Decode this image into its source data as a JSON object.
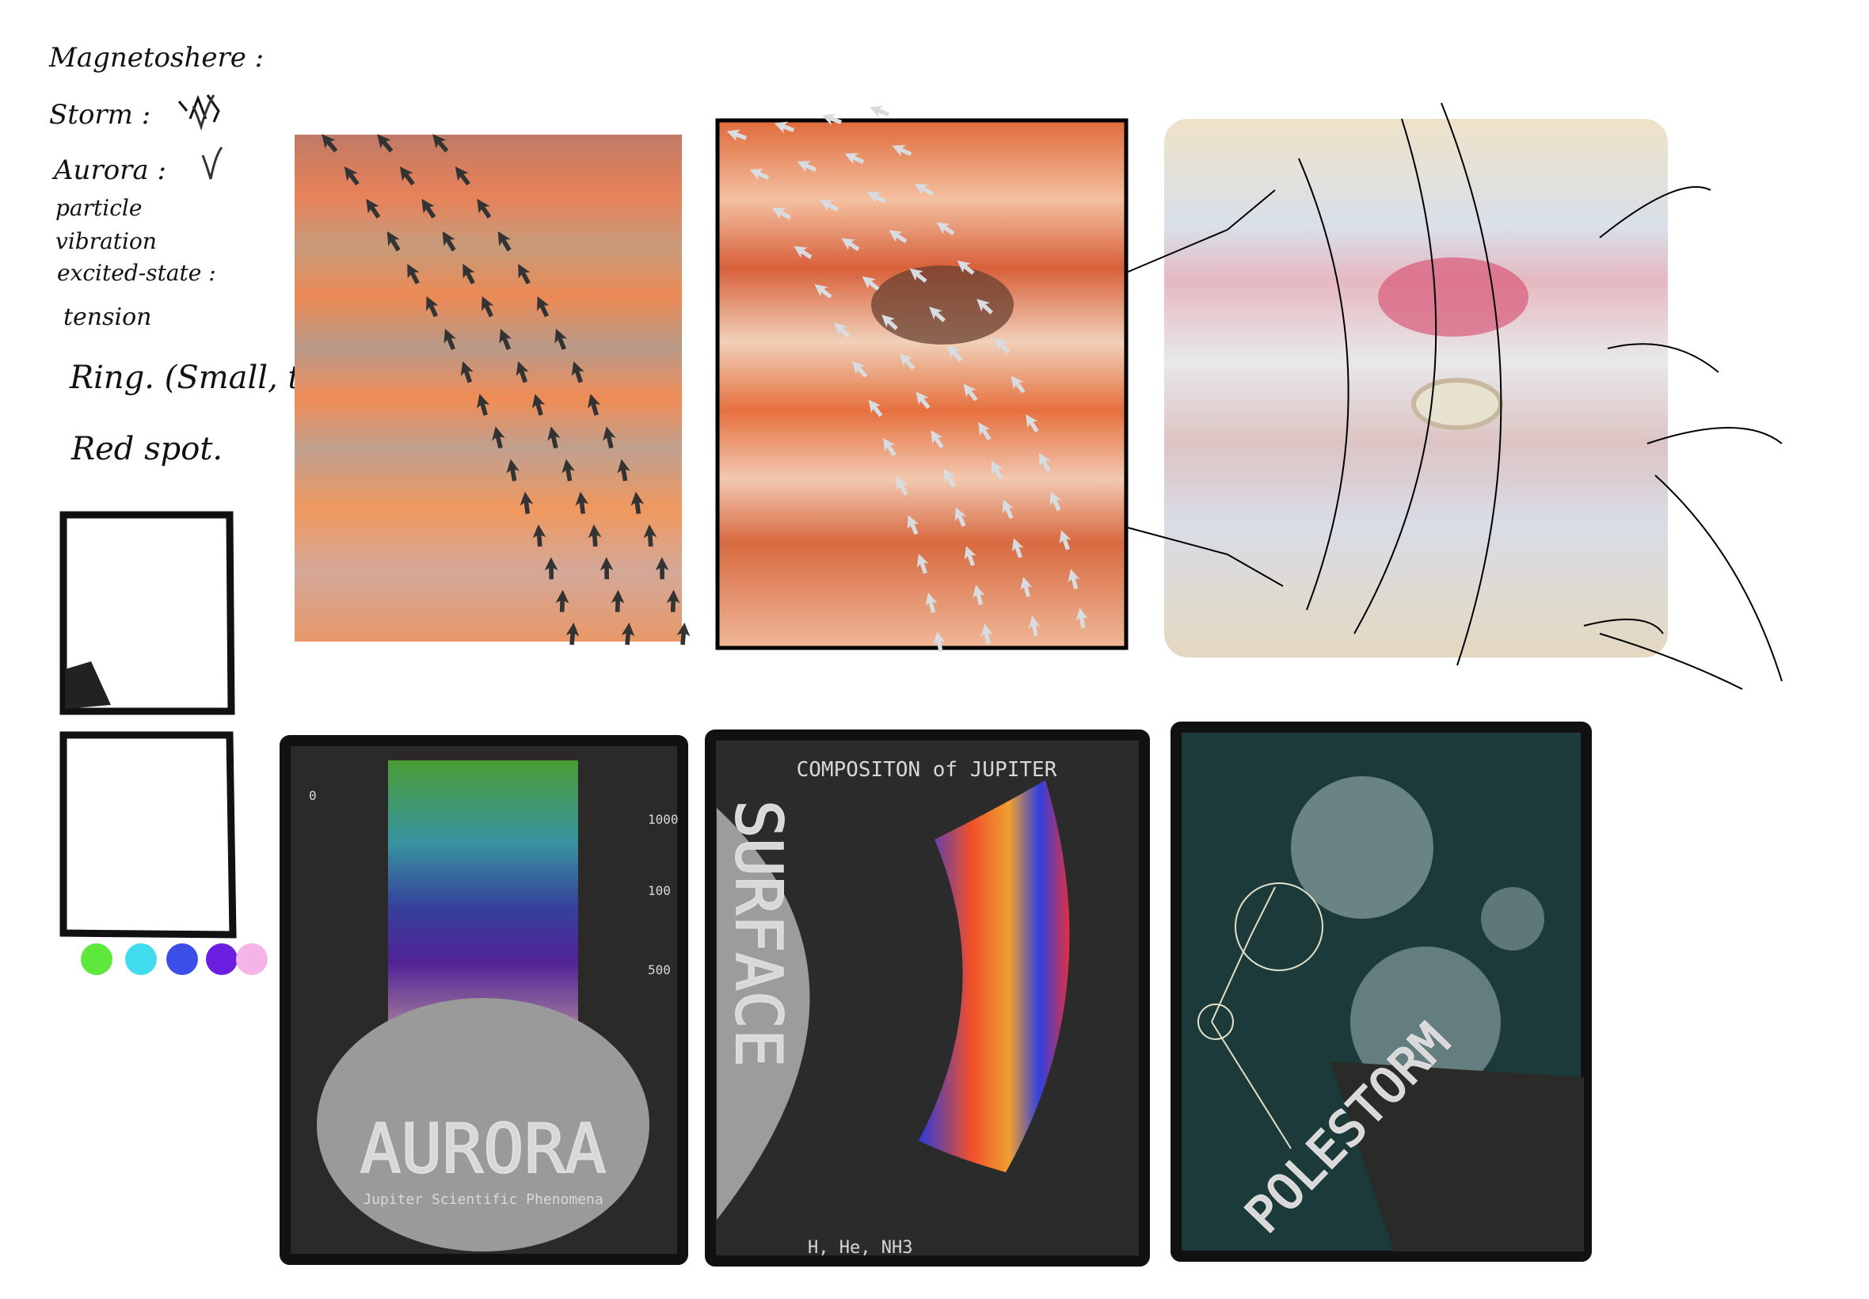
{
  "notes": {
    "items": [
      "Magnetoshere :",
      "Storm :",
      "Aurora :",
      "particle",
      "vibration",
      "excited-state :",
      "tension",
      "Ring. (Small, thin)",
      "Red spot."
    ]
  },
  "palette": [
    "#5ee83c",
    "#41dcf0",
    "#3c4ee8",
    "#6a1fe0",
    "#f4b4e8"
  ],
  "posters": {
    "aurora": {
      "title": "AURORA",
      "subtitle": "Jupiter Scientific Phenomena",
      "scale": [
        "0",
        "100",
        "500",
        "1000"
      ]
    },
    "composition": {
      "title": "COMPOSITON of JUPITER",
      "side": "SURFACE",
      "footer": "H, He, NH3"
    },
    "polestorm": {
      "title": "POLESTORM"
    }
  }
}
